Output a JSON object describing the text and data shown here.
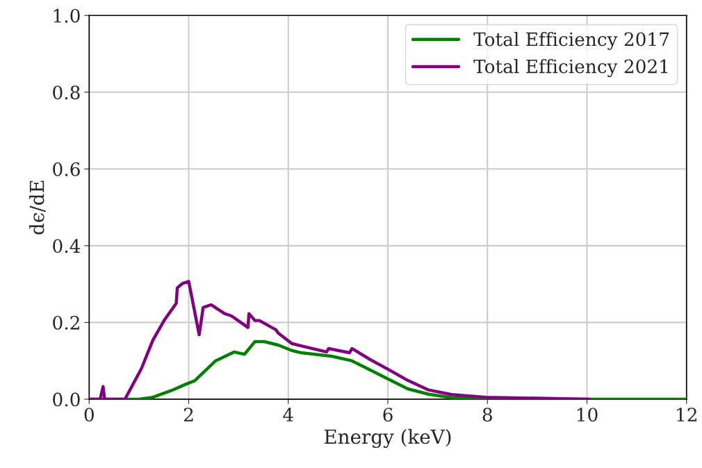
{
  "chart_data": {
    "type": "line",
    "xlabel": "Energy (keV)",
    "ylabel": "dϵ/dE",
    "xlim": [
      0,
      12
    ],
    "ylim": [
      0,
      1.0
    ],
    "xticks": [
      0,
      2,
      4,
      6,
      8,
      10,
      12
    ],
    "yticks": [
      {
        "value": 0,
        "label": "0.0"
      },
      0.2,
      0.4,
      0.6,
      0.8,
      {
        "value": 1.0,
        "label": "1.0"
      }
    ],
    "grid": true,
    "legend": "top right",
    "line_style": "solid",
    "marker": "none",
    "series": [
      {
        "name": "Total Efficiency 2017",
        "color": "#008000",
        "x": [
          0,
          1.0,
          1.28,
          1.66,
          1.94,
          2.12,
          2.54,
          2.91,
          3.12,
          3.33,
          3.52,
          3.8,
          4.07,
          4.26,
          4.87,
          5.28,
          5.65,
          6.03,
          6.4,
          6.82,
          7.28,
          8.0,
          12
        ],
        "values": [
          0,
          0,
          0.005,
          0.023,
          0.039,
          0.048,
          0.1,
          0.123,
          0.117,
          0.15,
          0.15,
          0.141,
          0.127,
          0.121,
          0.112,
          0.1,
          0.076,
          0.051,
          0.027,
          0.013,
          0.004,
          0,
          0
        ]
      },
      {
        "name": "Total Efficiency 2021",
        "color": "#800080",
        "x": [
          0,
          0.22,
          0.28,
          0.31,
          0.72,
          1.05,
          1.28,
          1.52,
          1.75,
          1.77,
          1.88,
          2.0,
          2.21,
          2.29,
          2.45,
          2.72,
          2.86,
          3.19,
          3.21,
          3.33,
          3.42,
          3.75,
          3.8,
          4.07,
          4.26,
          4.77,
          4.81,
          5.23,
          5.28,
          5.65,
          6.03,
          6.4,
          6.82,
          7.28,
          7.98,
          10.05
        ],
        "values": [
          0,
          0,
          0.033,
          0,
          0,
          0.08,
          0.154,
          0.208,
          0.25,
          0.29,
          0.302,
          0.307,
          0.168,
          0.239,
          0.246,
          0.223,
          0.217,
          0.187,
          0.223,
          0.205,
          0.205,
          0.181,
          0.172,
          0.145,
          0.139,
          0.123,
          0.132,
          0.121,
          0.132,
          0.103,
          0.076,
          0.049,
          0.024,
          0.012,
          0.005,
          0
        ]
      }
    ]
  }
}
